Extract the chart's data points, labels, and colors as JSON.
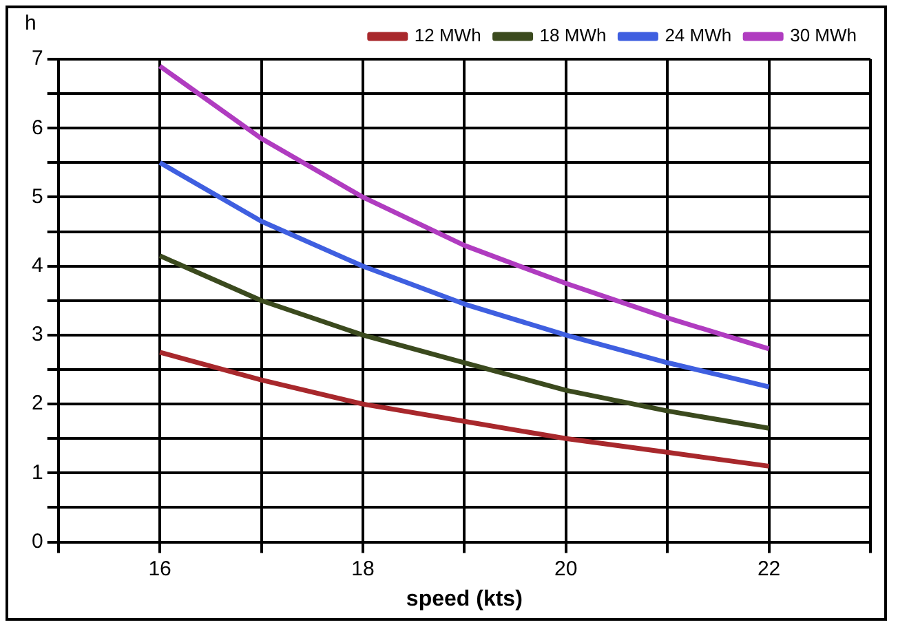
{
  "chart_data": {
    "type": "line",
    "ylabel": "h",
    "xlabel": "speed (kts)",
    "x": [
      16,
      17,
      18,
      19,
      20,
      21,
      22
    ],
    "series": [
      {
        "name": "12 MWh",
        "color": "#a8282c",
        "values": [
          2.75,
          2.35,
          2.0,
          1.75,
          1.5,
          1.3,
          1.1
        ]
      },
      {
        "name": "18 MWh",
        "color": "#3b4a1e",
        "values": [
          4.15,
          3.5,
          3.0,
          2.6,
          2.2,
          1.9,
          1.65
        ]
      },
      {
        "name": "24 MWh",
        "color": "#3f5fe0",
        "values": [
          5.5,
          4.65,
          4.0,
          3.45,
          3.0,
          2.6,
          2.25
        ]
      },
      {
        "name": "30 MWh",
        "color": "#b03cc0",
        "values": [
          6.9,
          5.85,
          5.0,
          4.3,
          3.75,
          3.25,
          2.8
        ]
      }
    ],
    "xlim": [
      15,
      23
    ],
    "xticks": [
      {
        "value": 15,
        "label": null
      },
      16,
      {
        "value": 17,
        "label": null
      },
      18,
      {
        "value": 19,
        "label": null
      },
      20,
      {
        "value": 21,
        "label": null
      },
      22,
      {
        "value": 23,
        "label": null
      }
    ],
    "ylim": [
      0,
      7
    ],
    "yticks": [
      0,
      {
        "value": 0.5,
        "label": null
      },
      1,
      {
        "value": 1.5,
        "label": null
      },
      2,
      {
        "value": 2.5,
        "label": null
      },
      3,
      {
        "value": 3.5,
        "label": null
      },
      4,
      {
        "value": 4.5,
        "label": null
      },
      5,
      {
        "value": 5.5,
        "label": null
      },
      6,
      {
        "value": 6.5,
        "label": null
      },
      7
    ],
    "grid": true,
    "legend": "top",
    "marker": "none",
    "line_style": "solid"
  }
}
